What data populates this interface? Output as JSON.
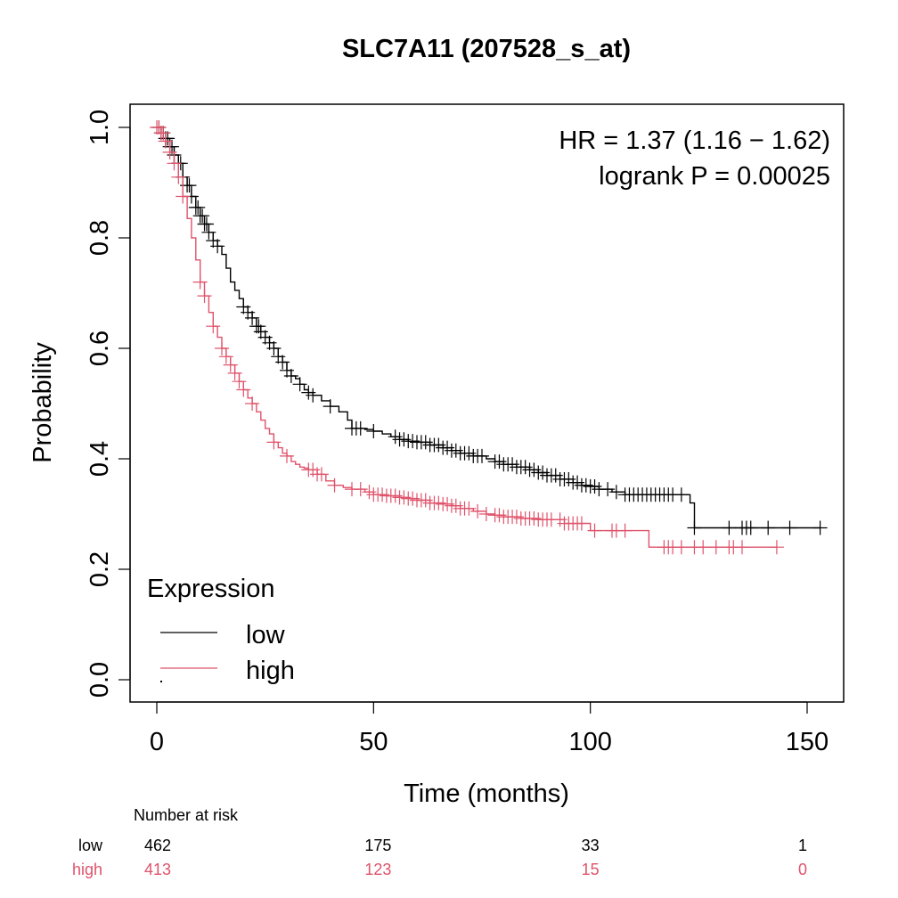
{
  "chart_data": {
    "type": "line",
    "subtype": "kaplan-meier",
    "title": "SLC7A11 (207528_s_at)",
    "xlabel": "Time (months)",
    "ylabel": "Probability",
    "xlim": [
      0,
      155
    ],
    "ylim": [
      0,
      1
    ],
    "xticks": [
      0,
      50,
      100,
      150
    ],
    "xtick_labels": [
      "0",
      "50",
      "100",
      "150"
    ],
    "yticks": [
      0,
      0.2,
      0.4,
      0.6,
      0.8,
      1.0
    ],
    "ytick_labels": [
      "0.0",
      "0.2",
      "0.4",
      "0.6",
      "0.8",
      "1.0"
    ],
    "grid": false,
    "annotations": {
      "hr": "HR = 1.37 (1.16 − 1.62)",
      "logrank": "logrank P = 0.00025"
    },
    "legend": {
      "title": "Expression",
      "position": "bottom-left",
      "entries": [
        {
          "label": "low",
          "color": "#000000"
        },
        {
          "label": "high",
          "color": "#DF536B"
        }
      ]
    },
    "series": [
      {
        "name": "low",
        "color": "#000000",
        "steps": [
          [
            0,
            1.0
          ],
          [
            1,
            0.99
          ],
          [
            2,
            0.98
          ],
          [
            3,
            0.965
          ],
          [
            4,
            0.95
          ],
          [
            5,
            0.935
          ],
          [
            6,
            0.91
          ],
          [
            7,
            0.895
          ],
          [
            8,
            0.875
          ],
          [
            9,
            0.855
          ],
          [
            10,
            0.84
          ],
          [
            11,
            0.825
          ],
          [
            12,
            0.81
          ],
          [
            13,
            0.795
          ],
          [
            14,
            0.785
          ],
          [
            15,
            0.77
          ],
          [
            16,
            0.745
          ],
          [
            17,
            0.72
          ],
          [
            18,
            0.705
          ],
          [
            19,
            0.69
          ],
          [
            20,
            0.675
          ],
          [
            21,
            0.665
          ],
          [
            22,
            0.655
          ],
          [
            23,
            0.64
          ],
          [
            24,
            0.63
          ],
          [
            25,
            0.62
          ],
          [
            26,
            0.61
          ],
          [
            27,
            0.6
          ],
          [
            28,
            0.585
          ],
          [
            29,
            0.575
          ],
          [
            30,
            0.56
          ],
          [
            31,
            0.55
          ],
          [
            32,
            0.545
          ],
          [
            33,
            0.535
          ],
          [
            34,
            0.525
          ],
          [
            35,
            0.52
          ],
          [
            36,
            0.515
          ],
          [
            38,
            0.505
          ],
          [
            40,
            0.495
          ],
          [
            42,
            0.485
          ],
          [
            44,
            0.47
          ],
          [
            45,
            0.455
          ],
          [
            48,
            0.453
          ],
          [
            50,
            0.45
          ],
          [
            52,
            0.445
          ],
          [
            54,
            0.44
          ],
          [
            56,
            0.435
          ],
          [
            58,
            0.432
          ],
          [
            60,
            0.43
          ],
          [
            63,
            0.425
          ],
          [
            66,
            0.42
          ],
          [
            68,
            0.415
          ],
          [
            70,
            0.41
          ],
          [
            73,
            0.405
          ],
          [
            76,
            0.4
          ],
          [
            78,
            0.395
          ],
          [
            80,
            0.39
          ],
          [
            83,
            0.385
          ],
          [
            86,
            0.38
          ],
          [
            88,
            0.375
          ],
          [
            90,
            0.37
          ],
          [
            93,
            0.363
          ],
          [
            96,
            0.357
          ],
          [
            98,
            0.352
          ],
          [
            100,
            0.35
          ],
          [
            102,
            0.345
          ],
          [
            105,
            0.34
          ],
          [
            108,
            0.335
          ],
          [
            123,
            0.32
          ],
          [
            124,
            0.275
          ],
          [
            153,
            0.275
          ]
        ],
        "censor_times": [
          0.5,
          1,
          1.5,
          2,
          2.5,
          3,
          3.5,
          4,
          5,
          5.5,
          6,
          7,
          7.5,
          8,
          9,
          9.5,
          10,
          10.5,
          11,
          11.5,
          12,
          13,
          14,
          20,
          21,
          22,
          23,
          23.5,
          24,
          25,
          26,
          27,
          28,
          29,
          30,
          31,
          33,
          35,
          36,
          40,
          45,
          46,
          47,
          50,
          55,
          56,
          57,
          58,
          59,
          60,
          61,
          62,
          63,
          64,
          65,
          66,
          67,
          68,
          69,
          70,
          71,
          72,
          73,
          74,
          75,
          78,
          79,
          80,
          81,
          82,
          83,
          84,
          85,
          86,
          87,
          88,
          89,
          90,
          91,
          92,
          93,
          94,
          95,
          96,
          97,
          98,
          99,
          100,
          101,
          102,
          104,
          106,
          108,
          109,
          110,
          111,
          112,
          113,
          114,
          115,
          116,
          117,
          118,
          119,
          121,
          124,
          132,
          135,
          136,
          137,
          141,
          146,
          153
        ]
      },
      {
        "name": "high",
        "color": "#DF536B",
        "steps": [
          [
            0,
            1.0
          ],
          [
            1,
            0.99
          ],
          [
            2,
            0.975
          ],
          [
            3,
            0.955
          ],
          [
            4,
            0.935
          ],
          [
            5,
            0.91
          ],
          [
            6,
            0.875
          ],
          [
            7,
            0.835
          ],
          [
            8,
            0.8
          ],
          [
            9,
            0.76
          ],
          [
            10,
            0.72
          ],
          [
            11,
            0.695
          ],
          [
            12,
            0.665
          ],
          [
            13,
            0.64
          ],
          [
            14,
            0.62
          ],
          [
            15,
            0.6
          ],
          [
            16,
            0.585
          ],
          [
            17,
            0.57
          ],
          [
            18,
            0.555
          ],
          [
            19,
            0.54
          ],
          [
            20,
            0.525
          ],
          [
            21,
            0.51
          ],
          [
            22,
            0.5
          ],
          [
            23,
            0.485
          ],
          [
            24,
            0.47
          ],
          [
            25,
            0.455
          ],
          [
            26,
            0.445
          ],
          [
            27,
            0.43
          ],
          [
            28,
            0.42
          ],
          [
            29,
            0.41
          ],
          [
            30,
            0.405
          ],
          [
            31,
            0.395
          ],
          [
            32,
            0.39
          ],
          [
            33,
            0.385
          ],
          [
            34,
            0.383
          ],
          [
            35,
            0.38
          ],
          [
            37,
            0.372
          ],
          [
            39,
            0.36
          ],
          [
            41,
            0.352
          ],
          [
            43,
            0.348
          ],
          [
            45,
            0.345
          ],
          [
            48,
            0.34
          ],
          [
            50,
            0.335
          ],
          [
            53,
            0.333
          ],
          [
            56,
            0.33
          ],
          [
            58,
            0.328
          ],
          [
            60,
            0.325
          ],
          [
            63,
            0.32
          ],
          [
            66,
            0.318
          ],
          [
            68,
            0.315
          ],
          [
            70,
            0.31
          ],
          [
            73,
            0.305
          ],
          [
            76,
            0.3
          ],
          [
            78,
            0.298
          ],
          [
            80,
            0.295
          ],
          [
            84,
            0.292
          ],
          [
            88,
            0.29
          ],
          [
            92,
            0.29
          ],
          [
            94,
            0.283
          ],
          [
            100,
            0.27
          ],
          [
            113,
            0.27
          ],
          [
            113.5,
            0.24
          ],
          [
            143,
            0.24
          ]
        ],
        "censor_times": [
          0,
          0.5,
          1,
          1.5,
          2,
          3,
          4,
          5,
          6,
          10,
          11,
          13,
          15,
          16,
          17,
          18,
          19,
          20,
          22,
          27,
          30,
          35,
          36,
          37,
          38,
          41,
          45,
          47,
          49,
          50,
          51,
          52,
          53,
          54,
          55,
          56,
          57,
          58,
          59,
          60,
          61,
          62,
          63,
          64,
          65,
          66,
          67,
          68,
          69,
          70,
          71,
          72,
          74,
          76,
          78,
          79,
          80,
          81,
          82,
          83,
          84,
          85,
          86,
          87,
          88,
          89,
          90,
          91,
          93,
          94,
          95,
          96,
          97,
          98,
          101,
          105,
          106,
          108,
          117,
          118,
          119,
          121,
          124,
          126,
          129,
          132,
          133,
          135,
          143
        ]
      }
    ],
    "risk_table": {
      "header": "Number at risk",
      "times": [
        0,
        50,
        100,
        150
      ],
      "rows": [
        {
          "label": "low",
          "color": "#000000",
          "values": [
            "462",
            "175",
            "33",
            "1"
          ]
        },
        {
          "label": "high",
          "color": "#DF536B",
          "values": [
            "413",
            "123",
            "15",
            "0"
          ]
        }
      ]
    }
  }
}
